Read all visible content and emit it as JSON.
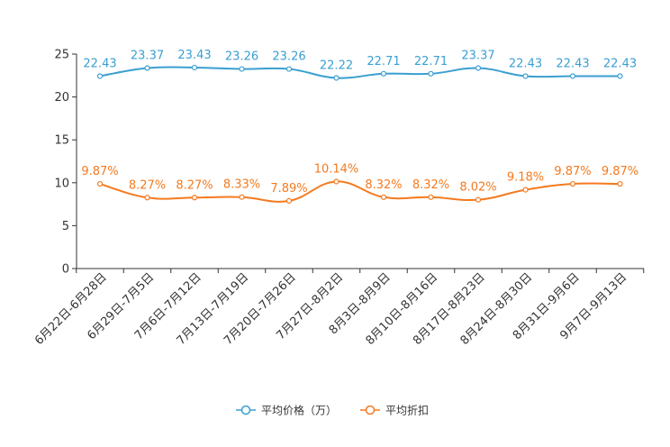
{
  "chart_data": {
    "type": "line",
    "title": "",
    "xlabel": "",
    "ylabel": "",
    "ylim": [
      0,
      25
    ],
    "yticks": [
      0,
      5,
      10,
      15,
      20,
      25
    ],
    "grid": false,
    "legend_position": "bottom-center",
    "categories": [
      "6月22日-6月28日",
      "6月29日-7月5日",
      "7月6日-7月12日",
      "7月13日-7月19日",
      "7月20日-7月26日",
      "7月27日-8月2日",
      "8月3日-8月9日",
      "8月10日-8月16日",
      "8月17日-8月23日",
      "8月24日-8月30日",
      "8月31日-9月6日",
      "9月7日-9月13日"
    ],
    "series": [
      {
        "name": "平均价格（万）",
        "color": "#3a9fd0",
        "values": [
          22.43,
          23.37,
          23.43,
          23.26,
          23.26,
          22.22,
          22.71,
          22.71,
          23.37,
          22.43,
          22.43,
          22.43
        ],
        "labels": [
          "22.43",
          "23.37",
          "23.43",
          "23.26",
          "23.26",
          "22.22",
          "22.71",
          "22.71",
          "23.37",
          "22.43",
          "22.43",
          "22.43"
        ]
      },
      {
        "name": "平均折扣",
        "color": "#f47a1f",
        "values": [
          9.87,
          8.27,
          8.27,
          8.33,
          7.89,
          10.14,
          8.32,
          8.32,
          8.02,
          9.18,
          9.87,
          9.87
        ],
        "labels": [
          "9.87%",
          "8.27%",
          "8.27%",
          "8.33%",
          "7.89%",
          "10.14%",
          "8.32%",
          "8.32%",
          "8.02%",
          "9.18%",
          "9.87%",
          "9.87%"
        ]
      }
    ]
  }
}
